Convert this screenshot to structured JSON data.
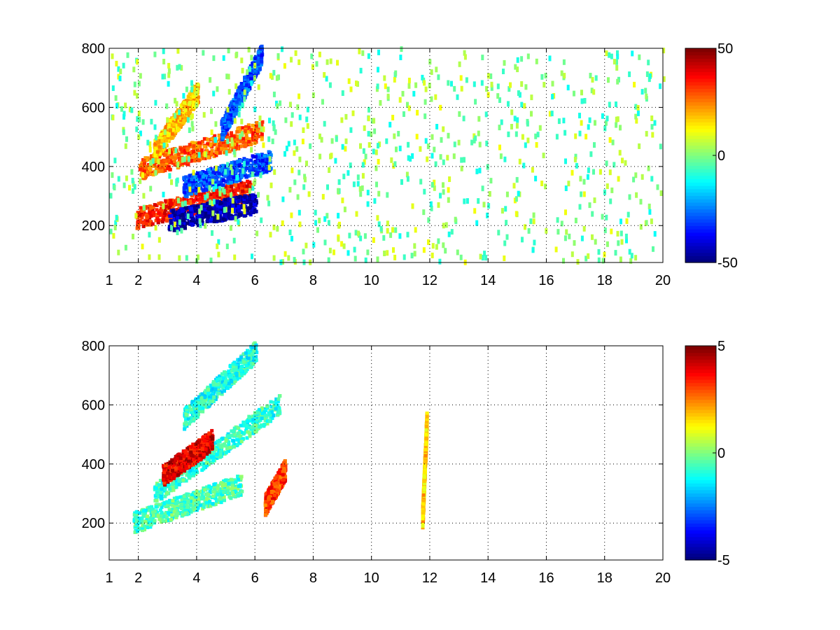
{
  "chart_data": [
    {
      "type": "heatmap",
      "title": "",
      "xlabel": "",
      "ylabel": "",
      "xlim": [
        1,
        20
      ],
      "ylim": [
        75,
        800
      ],
      "xticks": [
        1,
        2,
        4,
        6,
        8,
        10,
        12,
        14,
        16,
        18,
        20
      ],
      "yticks": [
        200,
        400,
        600,
        800
      ],
      "grid": true,
      "colormap": "jet",
      "colorbar": {
        "range": [
          -50,
          50
        ],
        "ticks": [
          -50,
          0,
          50
        ],
        "placement": "right"
      },
      "features": [
        {
          "x": [
            1.9,
            5.8
          ],
          "y0": 225,
          "y1": 320,
          "value": 35,
          "note": "lower positive band"
        },
        {
          "x": [
            3.0,
            6.0
          ],
          "y0": 215,
          "y1": 275,
          "value": -45,
          "note": "lower negative band"
        },
        {
          "x": [
            2.0,
            6.2
          ],
          "y0": 390,
          "y1": 520,
          "value": 28,
          "note": "middle positive band"
        },
        {
          "x": [
            3.5,
            6.5
          ],
          "y0": 330,
          "y1": 420,
          "value": -30,
          "note": "middle negative band"
        },
        {
          "x": [
            4.8,
            6.2
          ],
          "y0": 520,
          "y1": 780,
          "value": -30,
          "note": "upper negative band"
        },
        {
          "x": [
            2.5,
            4.0
          ],
          "y0": 450,
          "y1": 650,
          "value": 18,
          "note": "upper positive band"
        }
      ],
      "background_noise": {
        "value_range": [
          -12,
          12
        ],
        "x_range": [
          1,
          20
        ]
      }
    },
    {
      "type": "heatmap",
      "title": "",
      "xlabel": "",
      "ylabel": "",
      "xlim": [
        1,
        20
      ],
      "ylim": [
        75,
        800
      ],
      "xticks": [
        1,
        2,
        4,
        6,
        8,
        10,
        12,
        14,
        16,
        18,
        20
      ],
      "yticks": [
        200,
        400,
        600,
        800
      ],
      "grid": true,
      "colormap": "jet",
      "colorbar": {
        "range": [
          -5,
          5
        ],
        "ticks": [
          -5,
          0,
          5
        ],
        "placement": "right"
      },
      "features": [
        {
          "x": [
            1.8,
            5.5
          ],
          "y0": 200,
          "y1": 330,
          "value": -0.6,
          "note": "lower cluster"
        },
        {
          "x": [
            2.5,
            6.8
          ],
          "y0": 300,
          "y1": 600,
          "value": -0.8,
          "note": "middle cluster"
        },
        {
          "x": [
            3.5,
            6.0
          ],
          "y0": 550,
          "y1": 780,
          "value": -1.0,
          "note": "upper cluster"
        },
        {
          "x": [
            6.3,
            7.0
          ],
          "y0": 260,
          "y1": 380,
          "value": 3.2,
          "note": "orange streak"
        },
        {
          "x": [
            2.8,
            4.5
          ],
          "y0": 360,
          "y1": 480,
          "value": 4.0,
          "note": "scattered high values"
        },
        {
          "x": [
            11.7,
            11.85
          ],
          "y0": 210,
          "y1": 550,
          "value": 1.8,
          "note": "isolated vertical strip"
        }
      ]
    }
  ]
}
